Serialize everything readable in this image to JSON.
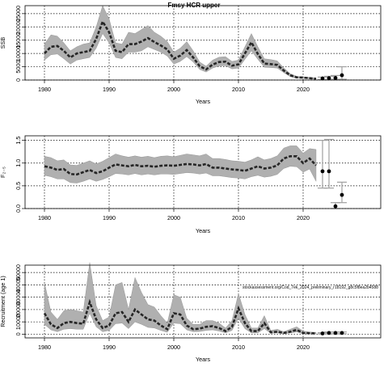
{
  "chart_data": [
    {
      "type": "area",
      "title": "Fmsy HCR upper",
      "xlabel": "Years",
      "ylabel": "SSB",
      "xlim": [
        1977,
        2032
      ],
      "ylim": [
        0,
        28000
      ],
      "x_ticks": [
        1980,
        1990,
        2000,
        2010,
        2020
      ],
      "y_ticks": [
        0,
        5000,
        10000,
        15000,
        20000,
        25000
      ],
      "y_tick_labels": [
        "0",
        "5000",
        "10000",
        "15000",
        "20000",
        "25000"
      ],
      "grid": true,
      "series": [
        {
          "x": [
            1980,
            1981,
            1982,
            1983,
            1984,
            1985,
            1986,
            1987,
            1988,
            1989,
            1990,
            1991,
            1992,
            1993,
            1994,
            1995,
            1996,
            1997,
            1998,
            1999,
            2000,
            2001,
            2002,
            2003,
            2004,
            2005,
            2006,
            2007,
            2008,
            2009,
            2010,
            2011,
            2012,
            2013,
            2014,
            2015,
            2016,
            2017,
            2018,
            2019,
            2020,
            2021,
            2022
          ],
          "y": [
            10000,
            12500,
            12800,
            11000,
            8500,
            10000,
            10500,
            11000,
            15500,
            22000,
            18000,
            11000,
            10500,
            13500,
            13500,
            14500,
            15800,
            14300,
            13000,
            11500,
            8000,
            9200,
            11300,
            8500,
            5200,
            4000,
            5800,
            6800,
            6900,
            5400,
            5900,
            10000,
            14200,
            9800,
            6200,
            6000,
            5700,
            3600,
            1800,
            1000,
            900,
            700,
            500
          ],
          "lower": [
            7500,
            9500,
            9800,
            8000,
            6000,
            7500,
            8000,
            8500,
            12000,
            17500,
            14000,
            8500,
            8000,
            10500,
            10500,
            11000,
            12500,
            11500,
            10500,
            9000,
            6000,
            7000,
            8800,
            6800,
            4000,
            3000,
            4500,
            5300,
            5400,
            4200,
            4500,
            7800,
            11000,
            7800,
            4800,
            4700,
            4500,
            2800,
            1300,
            700,
            600,
            450,
            300
          ],
          "upper": [
            13500,
            17000,
            16500,
            14000,
            11000,
            12500,
            13500,
            14000,
            20000,
            28000,
            23000,
            14000,
            13500,
            18000,
            17500,
            19000,
            20500,
            18000,
            16500,
            14500,
            10500,
            12000,
            14500,
            11000,
            6800,
            5200,
            7500,
            8600,
            8800,
            7000,
            7500,
            12500,
            17500,
            12500,
            8000,
            7700,
            7200,
            4600,
            2400,
            1400,
            1200,
            1000,
            800
          ]
        }
      ],
      "forecast": {
        "x": [
          2023,
          2024,
          2025,
          2026
        ],
        "y": [
          600,
          700,
          800,
          1800
        ],
        "lower": [
          200,
          200,
          250,
          300
        ],
        "upper": [
          1100,
          1400,
          1700,
          5000
        ]
      }
    },
    {
      "type": "area",
      "title": "",
      "xlabel": "Years",
      "ylabel": "F₂₋₅",
      "xlim": [
        1977,
        2032
      ],
      "ylim": [
        0,
        1.6
      ],
      "x_ticks": [
        1980,
        1990,
        2000,
        2010,
        2020
      ],
      "y_ticks": [
        0,
        0.5,
        1.0,
        1.5
      ],
      "y_tick_labels": [
        "0.0",
        "0.5",
        "1.0",
        "1.5"
      ],
      "grid": true,
      "series": [
        {
          "x": [
            1980,
            1981,
            1982,
            1983,
            1984,
            1985,
            1986,
            1987,
            1988,
            1989,
            1990,
            1991,
            1992,
            1993,
            1994,
            1995,
            1996,
            1997,
            1998,
            1999,
            2000,
            2001,
            2002,
            2003,
            2004,
            2005,
            2006,
            2007,
            2008,
            2009,
            2010,
            2011,
            2012,
            2013,
            2014,
            2015,
            2016,
            2017,
            2018,
            2019,
            2020,
            2021,
            2022
          ],
          "y": [
            0.93,
            0.9,
            0.85,
            0.87,
            0.76,
            0.75,
            0.8,
            0.85,
            0.78,
            0.82,
            0.9,
            0.97,
            0.95,
            0.93,
            0.96,
            0.93,
            0.94,
            0.92,
            0.94,
            0.95,
            0.94,
            0.96,
            0.98,
            0.97,
            0.95,
            0.98,
            0.9,
            0.9,
            0.88,
            0.86,
            0.85,
            0.83,
            0.88,
            0.93,
            0.88,
            0.9,
            0.95,
            1.1,
            1.15,
            1.15,
            1.0,
            1.1,
            0.95
          ],
          "lower": [
            0.73,
            0.7,
            0.65,
            0.65,
            0.57,
            0.56,
            0.6,
            0.65,
            0.6,
            0.64,
            0.7,
            0.77,
            0.76,
            0.74,
            0.77,
            0.74,
            0.76,
            0.74,
            0.76,
            0.76,
            0.75,
            0.77,
            0.79,
            0.78,
            0.76,
            0.78,
            0.72,
            0.72,
            0.7,
            0.68,
            0.67,
            0.65,
            0.7,
            0.73,
            0.69,
            0.71,
            0.75,
            0.88,
            0.93,
            0.92,
            0.8,
            0.87,
            0.6
          ],
          "upper": [
            1.15,
            1.12,
            1.05,
            1.07,
            0.96,
            0.95,
            1.0,
            1.05,
            0.98,
            1.04,
            1.12,
            1.2,
            1.16,
            1.13,
            1.16,
            1.13,
            1.15,
            1.12,
            1.15,
            1.16,
            1.14,
            1.17,
            1.2,
            1.18,
            1.16,
            1.2,
            1.1,
            1.1,
            1.08,
            1.05,
            1.04,
            1.02,
            1.07,
            1.14,
            1.07,
            1.1,
            1.16,
            1.33,
            1.38,
            1.38,
            1.22,
            1.32,
            1.3
          ]
        }
      ],
      "forecast": {
        "x": [
          2023,
          2024,
          2025,
          2026
        ],
        "y": [
          0.82,
          0.82,
          0.05,
          0.3
        ],
        "lower": [
          0.45,
          0.45,
          0.0,
          0.13
        ],
        "upper": [
          1.5,
          1.52,
          0.13,
          0.58
        ]
      }
    },
    {
      "type": "area",
      "title": "",
      "xlabel": "Years",
      "ylabel": "Recruitment (age 1)",
      "xlim": [
        1977,
        2032
      ],
      "ylim": [
        -3000,
        56000
      ],
      "x_ticks": [
        1980,
        1990,
        2000,
        2010,
        2020
      ],
      "y_ticks": [
        0,
        10000,
        20000,
        30000,
        40000,
        50000
      ],
      "y_tick_labels": [
        "0",
        "10000",
        "20000",
        "30000",
        "40000",
        "50000"
      ],
      "grid": true,
      "annotation": "stockassessment.org/Cod_7ek_2024_preliminary_r18192_g8c5f8ea2b4588",
      "series": [
        {
          "x": [
            1980,
            1981,
            1982,
            1983,
            1984,
            1985,
            1986,
            1987,
            1988,
            1989,
            1990,
            1991,
            1992,
            1993,
            1994,
            1995,
            1996,
            1997,
            1998,
            1999,
            2000,
            2001,
            2002,
            2003,
            2004,
            2005,
            2006,
            2007,
            2008,
            2009,
            2010,
            2011,
            2012,
            2013,
            2014,
            2015,
            2016,
            2017,
            2018,
            2019,
            2020,
            2021,
            2022
          ],
          "y": [
            17000,
            8000,
            5000,
            9000,
            10000,
            9000,
            8500,
            26000,
            12000,
            5000,
            7000,
            17000,
            18000,
            10000,
            20000,
            16000,
            12000,
            11000,
            7000,
            4000,
            17000,
            16000,
            7000,
            4000,
            4500,
            6000,
            6500,
            5000,
            2500,
            6000,
            21000,
            9000,
            2500,
            2500,
            9000,
            1500,
            2000,
            1000,
            2000,
            3500,
            1000,
            800,
            600
          ],
          "lower": [
            8000,
            3500,
            2000,
            4000,
            4500,
            4000,
            4000,
            17000,
            6000,
            2000,
            3000,
            8500,
            9000,
            4500,
            10000,
            8000,
            5500,
            5000,
            3000,
            1500,
            9000,
            8500,
            3500,
            2000,
            2200,
            3000,
            3500,
            2500,
            1000,
            3000,
            13000,
            4500,
            1000,
            1000,
            4500,
            700,
            1000,
            400,
            1000,
            1800,
            400,
            300,
            200
          ],
          "upper": [
            42000,
            18000,
            12000,
            19000,
            20000,
            19000,
            18000,
            58000,
            23000,
            11000,
            14000,
            40000,
            42000,
            20000,
            46000,
            34000,
            24000,
            22000,
            15000,
            9000,
            32000,
            30000,
            13000,
            8000,
            8000,
            11000,
            11000,
            9000,
            5000,
            11000,
            33000,
            16000,
            5000,
            5000,
            15000,
            3000,
            4000,
            2000,
            4000,
            6000,
            2500,
            1800,
            1500
          ]
        }
      ],
      "forecast": {
        "x": [
          2023,
          2024,
          2025,
          2026
        ],
        "y": [
          600,
          1000,
          1000,
          1000
        ],
        "lower": [
          200,
          300,
          300,
          300
        ],
        "upper": [
          1200,
          1800,
          1800,
          1800
        ]
      }
    }
  ]
}
